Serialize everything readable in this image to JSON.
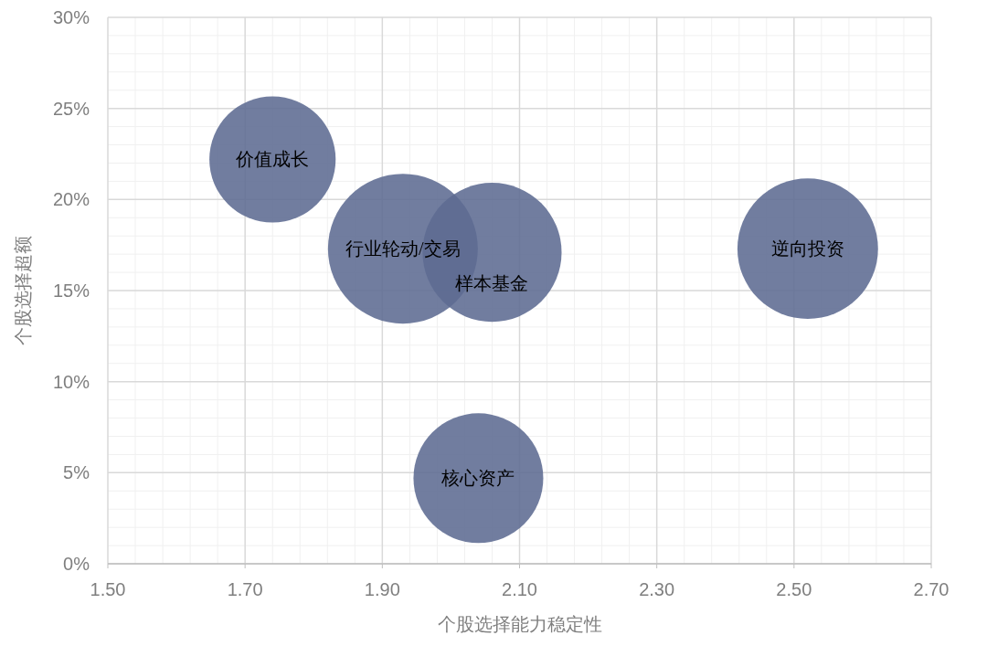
{
  "chart_data": {
    "type": "bubble",
    "xlabel": "个股选择能力稳定性",
    "ylabel": "个股选择超额",
    "xlim": [
      1.5,
      2.7
    ],
    "xticks": [
      {
        "value": 1.5,
        "label": "1.50"
      },
      {
        "value": 1.7,
        "label": "1.70"
      },
      {
        "value": 1.9,
        "label": "1.90"
      },
      {
        "value": 2.1,
        "label": "2.10"
      },
      {
        "value": 2.3,
        "label": "2.30"
      },
      {
        "value": 2.5,
        "label": "2.50"
      },
      {
        "value": 2.7,
        "label": "2.70"
      }
    ],
    "ylim": [
      0,
      30
    ],
    "yticks": [
      {
        "value": 0,
        "label": "0%"
      },
      {
        "value": 5,
        "label": "5%"
      },
      {
        "value": 10,
        "label": "10%"
      },
      {
        "value": 15,
        "label": "15%"
      },
      {
        "value": 20,
        "label": "20%"
      },
      {
        "value": 25,
        "label": "25%"
      },
      {
        "value": 30,
        "label": "30%"
      }
    ],
    "grid": true,
    "series": [
      {
        "name": "价值成长",
        "color": "#5d6b92",
        "x": [
          1.74
        ],
        "values": [
          22.2
        ],
        "sizes": [
          0.71
        ]
      },
      {
        "name": "行业轮动/交易",
        "color": "#5d6b92",
        "x": [
          1.93
        ],
        "values": [
          17.3
        ],
        "sizes": [
          1
        ]
      },
      {
        "name": "样本基金",
        "color": "#5d6b92",
        "x": [
          2.06
        ],
        "values": [
          17.1
        ],
        "sizes": [
          0.86
        ]
      },
      {
        "name": "逆向投资",
        "color": "#5d6b92",
        "x": [
          2.52
        ],
        "values": [
          17.3
        ],
        "sizes": [
          0.88
        ]
      },
      {
        "name": "核心资产",
        "color": "#5d6b92",
        "x": [
          2.04
        ],
        "values": [
          4.7
        ],
        "sizes": [
          0.75
        ]
      }
    ]
  }
}
